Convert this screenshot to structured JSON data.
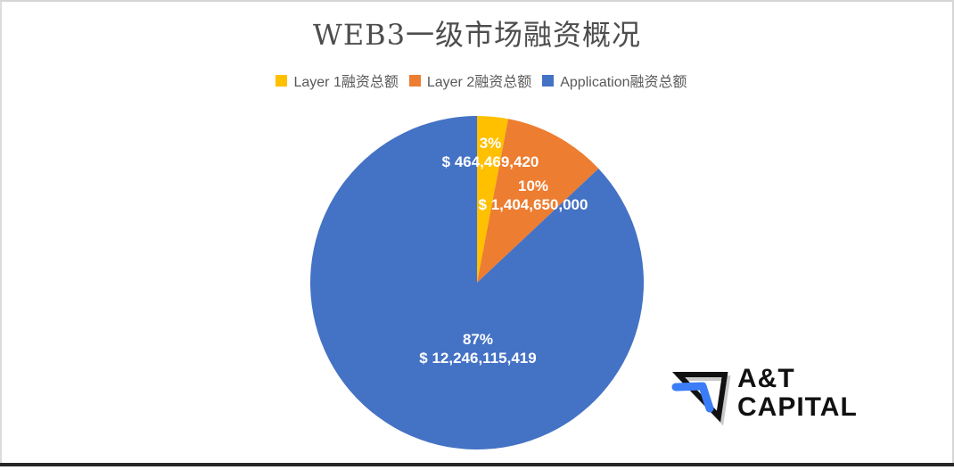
{
  "title": "WEB3一级市场融资概况",
  "chart_data": {
    "type": "pie",
    "title": "WEB3一级市场融资概况",
    "start_angle_deg": 0,
    "direction": "clockwise",
    "legend_position": "top",
    "slices": [
      {
        "label": "Layer 1融资总额",
        "percent": 3,
        "amount_usd": 464469420,
        "percent_label": "3%",
        "amount_label": "$ 464,469,420",
        "color": "#FFC000"
      },
      {
        "label": "Layer 2融资总额",
        "percent": 10,
        "amount_usd": 1404650000,
        "percent_label": "10%",
        "amount_label": "$ 1,404,650,000",
        "color": "#ED7D31"
      },
      {
        "label": "Application融资总额",
        "percent": 87,
        "amount_usd": 12246115419,
        "percent_label": "87%",
        "amount_label": "$ 12,246,115,419",
        "color": "#4472C4"
      }
    ]
  },
  "logo": {
    "line1": "A&T",
    "line2": "CAPITAL",
    "mark_black": "#111111",
    "mark_blue": "#3b7df7",
    "mark_shadow": "#c9c9c9"
  }
}
